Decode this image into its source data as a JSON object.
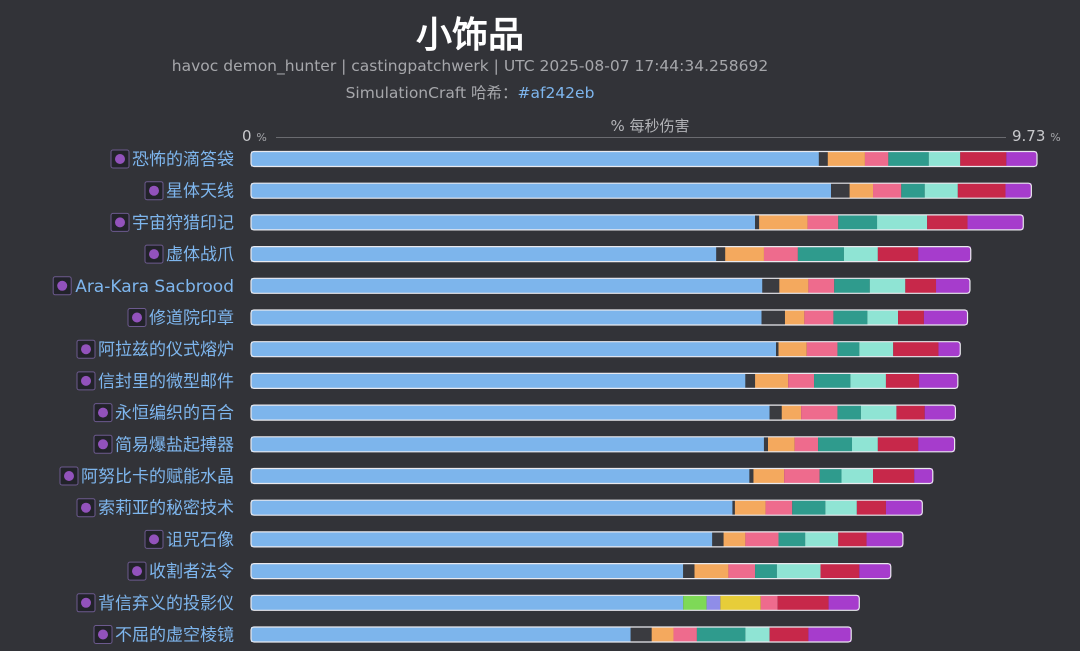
{
  "header": {
    "title": "小饰品",
    "subtitle": "havoc demon_hunter | castingpatchwerk | UTC 2025-08-07 17:44:34.258692",
    "attribution_prefix": "SimulationCraft 哈希：",
    "attribution_hash": "#af242eb"
  },
  "colors": {
    "background": "#323338",
    "base_bar": "#7db5ec",
    "label_text": "#7eb6ee",
    "bar_outline": "#e9e9ee"
  },
  "chart_data": {
    "type": "bar",
    "orientation": "horizontal",
    "stacked": true,
    "title": "小饰品",
    "xlabel": "% 每秒伤害",
    "xlim": [
      0,
      9.73
    ],
    "x_tick_min": "0",
    "x_tick_max": "9.73",
    "x_unit": "%",
    "grid": false,
    "legend": "none",
    "categories": [
      {
        "name": "恐怖的滴答袋",
        "icon": "dark-bag-icon",
        "segments": [
          {
            "v": 7.03,
            "c": "#7db5ec"
          },
          {
            "v": 0.11,
            "c": "#3a3b40"
          },
          {
            "v": 0.46,
            "c": "#f4a95e"
          },
          {
            "v": 0.29,
            "c": "#ee6b8d"
          },
          {
            "v": 0.5,
            "c": "#2f9b8d"
          },
          {
            "v": 0.39,
            "c": "#8fe4d4"
          },
          {
            "v": 0.57,
            "c": "#c7284a"
          },
          {
            "v": 0.38,
            "c": "#a63ccc"
          }
        ]
      },
      {
        "name": "星体天线",
        "icon": "purple-feather-icon",
        "segments": [
          {
            "v": 7.18,
            "c": "#7db5ec"
          },
          {
            "v": 0.23,
            "c": "#3a3b40"
          },
          {
            "v": 0.29,
            "c": "#f4a95e"
          },
          {
            "v": 0.35,
            "c": "#ee6b8d"
          },
          {
            "v": 0.29,
            "c": "#2f9b8d"
          },
          {
            "v": 0.41,
            "c": "#8fe4d4"
          },
          {
            "v": 0.59,
            "c": "#c7284a"
          },
          {
            "v": 0.32,
            "c": "#a63ccc"
          }
        ]
      },
      {
        "name": "宇宙狩猎印记",
        "icon": "cosmic-mark-icon",
        "segments": [
          {
            "v": 6.24,
            "c": "#7db5ec"
          },
          {
            "v": 0.05,
            "c": "#3a3b40"
          },
          {
            "v": 0.6,
            "c": "#f4a95e"
          },
          {
            "v": 0.38,
            "c": "#ee6b8d"
          },
          {
            "v": 0.48,
            "c": "#2f9b8d"
          },
          {
            "v": 0.62,
            "c": "#8fe4d4"
          },
          {
            "v": 0.5,
            "c": "#c7284a"
          },
          {
            "v": 0.69,
            "c": "#a63ccc"
          }
        ]
      },
      {
        "name": "虚体战爪",
        "icon": "void-claw-icon",
        "segments": [
          {
            "v": 5.76,
            "c": "#7db5ec"
          },
          {
            "v": 0.11,
            "c": "#3a3b40"
          },
          {
            "v": 0.48,
            "c": "#f4a95e"
          },
          {
            "v": 0.42,
            "c": "#ee6b8d"
          },
          {
            "v": 0.57,
            "c": "#2f9b8d"
          },
          {
            "v": 0.42,
            "c": "#8fe4d4"
          },
          {
            "v": 0.5,
            "c": "#c7284a"
          },
          {
            "v": 0.65,
            "c": "#a63ccc"
          }
        ]
      },
      {
        "name": "Ara-Kara Sacbrood",
        "icon": "spider-sac-icon",
        "segments": [
          {
            "v": 6.33,
            "c": "#7db5ec"
          },
          {
            "v": 0.21,
            "c": "#3a3b40"
          },
          {
            "v": 0.36,
            "c": "#f4a95e"
          },
          {
            "v": 0.32,
            "c": "#ee6b8d"
          },
          {
            "v": 0.44,
            "c": "#2f9b8d"
          },
          {
            "v": 0.44,
            "c": "#8fe4d4"
          },
          {
            "v": 0.38,
            "c": "#c7284a"
          },
          {
            "v": 0.42,
            "c": "#a63ccc"
          }
        ]
      },
      {
        "name": "修道院印章",
        "icon": "priory-seal-icon",
        "segments": [
          {
            "v": 6.32,
            "c": "#7db5ec"
          },
          {
            "v": 0.29,
            "c": "#3a3b40"
          },
          {
            "v": 0.24,
            "c": "#f4a95e"
          },
          {
            "v": 0.36,
            "c": "#ee6b8d"
          },
          {
            "v": 0.42,
            "c": "#2f9b8d"
          },
          {
            "v": 0.38,
            "c": "#8fe4d4"
          },
          {
            "v": 0.32,
            "c": "#c7284a"
          },
          {
            "v": 0.54,
            "c": "#a63ccc"
          }
        ]
      },
      {
        "name": "阿拉兹的仪式熔炉",
        "icon": "ritual-forge-icon",
        "segments": [
          {
            "v": 6.5,
            "c": "#7db5ec"
          },
          {
            "v": 0.03,
            "c": "#3a3b40"
          },
          {
            "v": 0.35,
            "c": "#f4a95e"
          },
          {
            "v": 0.38,
            "c": "#ee6b8d"
          },
          {
            "v": 0.27,
            "c": "#2f9b8d"
          },
          {
            "v": 0.42,
            "c": "#8fe4d4"
          },
          {
            "v": 0.56,
            "c": "#c7284a"
          },
          {
            "v": 0.27,
            "c": "#a63ccc"
          }
        ]
      },
      {
        "name": "信封里的微型邮件",
        "icon": "envelope-icon",
        "segments": [
          {
            "v": 6.12,
            "c": "#7db5ec"
          },
          {
            "v": 0.12,
            "c": "#3a3b40"
          },
          {
            "v": 0.41,
            "c": "#f4a95e"
          },
          {
            "v": 0.32,
            "c": "#ee6b8d"
          },
          {
            "v": 0.45,
            "c": "#2f9b8d"
          },
          {
            "v": 0.44,
            "c": "#8fe4d4"
          },
          {
            "v": 0.41,
            "c": "#c7284a"
          },
          {
            "v": 0.48,
            "c": "#a63ccc"
          }
        ]
      },
      {
        "name": "永恒编织的百合",
        "icon": "lily-icon",
        "segments": [
          {
            "v": 6.42,
            "c": "#7db5ec"
          },
          {
            "v": 0.15,
            "c": "#3a3b40"
          },
          {
            "v": 0.24,
            "c": "#f4a95e"
          },
          {
            "v": 0.45,
            "c": "#ee6b8d"
          },
          {
            "v": 0.29,
            "c": "#2f9b8d"
          },
          {
            "v": 0.44,
            "c": "#8fe4d4"
          },
          {
            "v": 0.35,
            "c": "#c7284a"
          },
          {
            "v": 0.38,
            "c": "#a63ccc"
          }
        ]
      },
      {
        "name": "简易爆盐起搏器",
        "icon": "salt-igniter-icon",
        "segments": [
          {
            "v": 6.35,
            "c": "#7db5ec"
          },
          {
            "v": 0.05,
            "c": "#3a3b40"
          },
          {
            "v": 0.33,
            "c": "#f4a95e"
          },
          {
            "v": 0.29,
            "c": "#ee6b8d"
          },
          {
            "v": 0.42,
            "c": "#2f9b8d"
          },
          {
            "v": 0.32,
            "c": "#8fe4d4"
          },
          {
            "v": 0.5,
            "c": "#c7284a"
          },
          {
            "v": 0.45,
            "c": "#a63ccc"
          }
        ]
      },
      {
        "name": "阿努比卡的赋能水晶",
        "icon": "crystal-icon",
        "segments": [
          {
            "v": 6.17,
            "c": "#7db5ec"
          },
          {
            "v": 0.05,
            "c": "#3a3b40"
          },
          {
            "v": 0.38,
            "c": "#f4a95e"
          },
          {
            "v": 0.44,
            "c": "#ee6b8d"
          },
          {
            "v": 0.27,
            "c": "#2f9b8d"
          },
          {
            "v": 0.39,
            "c": "#8fe4d4"
          },
          {
            "v": 0.51,
            "c": "#c7284a"
          },
          {
            "v": 0.23,
            "c": "#a63ccc"
          }
        ]
      },
      {
        "name": "索莉亚的秘密技术",
        "icon": "secret-tech-icon",
        "segments": [
          {
            "v": 5.96,
            "c": "#7db5ec"
          },
          {
            "v": 0.03,
            "c": "#3a3b40"
          },
          {
            "v": 0.38,
            "c": "#f4a95e"
          },
          {
            "v": 0.33,
            "c": "#ee6b8d"
          },
          {
            "v": 0.41,
            "c": "#2f9b8d"
          },
          {
            "v": 0.39,
            "c": "#8fe4d4"
          },
          {
            "v": 0.36,
            "c": "#c7284a"
          },
          {
            "v": 0.45,
            "c": "#a63ccc"
          }
        ]
      },
      {
        "name": "诅咒石像",
        "icon": "cursed-statue-icon",
        "segments": [
          {
            "v": 5.71,
            "c": "#7db5ec"
          },
          {
            "v": 0.14,
            "c": "#3a3b40"
          },
          {
            "v": 0.27,
            "c": "#f4a95e"
          },
          {
            "v": 0.41,
            "c": "#ee6b8d"
          },
          {
            "v": 0.33,
            "c": "#2f9b8d"
          },
          {
            "v": 0.41,
            "c": "#8fe4d4"
          },
          {
            "v": 0.35,
            "c": "#c7284a"
          },
          {
            "v": 0.45,
            "c": "#a63ccc"
          }
        ]
      },
      {
        "name": "收割者法令",
        "icon": "reaper-decree-icon",
        "segments": [
          {
            "v": 5.35,
            "c": "#7db5ec"
          },
          {
            "v": 0.14,
            "c": "#3a3b40"
          },
          {
            "v": 0.42,
            "c": "#f4a95e"
          },
          {
            "v": 0.33,
            "c": "#ee6b8d"
          },
          {
            "v": 0.27,
            "c": "#2f9b8d"
          },
          {
            "v": 0.54,
            "c": "#8fe4d4"
          },
          {
            "v": 0.48,
            "c": "#c7284a"
          },
          {
            "v": 0.39,
            "c": "#a63ccc"
          }
        ]
      },
      {
        "name": "背信弃义的投影仪",
        "icon": "projector-icon",
        "segments": [
          {
            "v": 5.35,
            "c": "#7db5ec"
          },
          {
            "v": 0.29,
            "c": "#7ed957"
          },
          {
            "v": 0.17,
            "c": "#8f8de8"
          },
          {
            "v": 0.5,
            "c": "#e7cd39"
          },
          {
            "v": 0.21,
            "c": "#ee6b8d"
          },
          {
            "v": 0.63,
            "c": "#c7284a"
          },
          {
            "v": 0.38,
            "c": "#a63ccc"
          }
        ]
      },
      {
        "name": "不屈的虚空棱镜",
        "icon": "void-prism-icon",
        "segments": [
          {
            "v": 4.7,
            "c": "#7db5ec"
          },
          {
            "v": 0.26,
            "c": "#3a3b40"
          },
          {
            "v": 0.27,
            "c": "#f4a95e"
          },
          {
            "v": 0.29,
            "c": "#ee6b8d"
          },
          {
            "v": 0.6,
            "c": "#2f9b8d"
          },
          {
            "v": 0.3,
            "c": "#8fe4d4"
          },
          {
            "v": 0.48,
            "c": "#c7284a"
          },
          {
            "v": 0.53,
            "c": "#a63ccc"
          }
        ]
      }
    ]
  }
}
